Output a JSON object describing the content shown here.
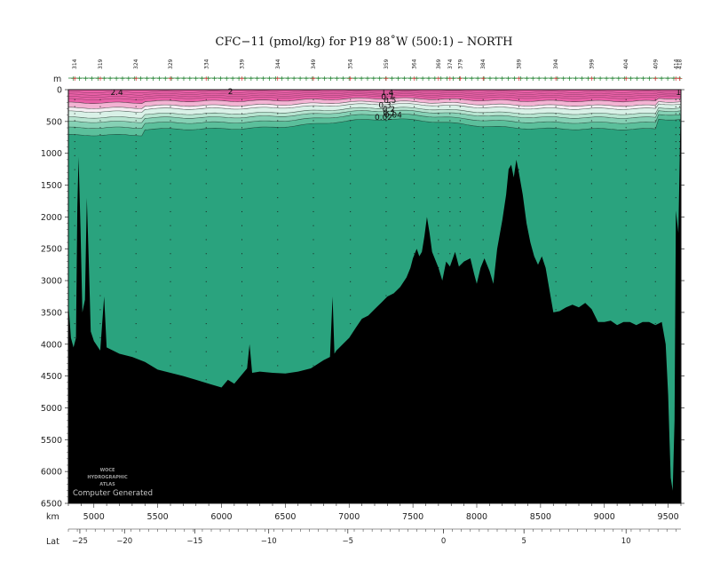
{
  "chart_data": {
    "type": "area",
    "title": "CFC−11 (pmol/kg) for P19 88˚W (500:1) – NORTH",
    "depth_unit_label": "m",
    "km_label": "km",
    "lat_label": "Lat",
    "ylim": [
      0,
      6500
    ],
    "xlim": [
      4800,
      9600
    ],
    "yticks": [
      0,
      500,
      1000,
      1500,
      2000,
      2500,
      3000,
      3500,
      4000,
      4500,
      5000,
      5500,
      6000,
      6500
    ],
    "xticks_km": [
      5000,
      5500,
      6000,
      6500,
      7000,
      7500,
      8000,
      8500,
      9000,
      9500
    ],
    "lat_ticks": [
      {
        "label": "−25",
        "km": 4890
      },
      {
        "label": "−20",
        "km": 5240
      },
      {
        "label": "−15",
        "km": 5790
      },
      {
        "label": "−10",
        "km": 6370
      },
      {
        "label": "−5",
        "km": 6990
      },
      {
        "label": "0",
        "km": 7740
      },
      {
        "label": "5",
        "km": 8370
      },
      {
        "label": "10",
        "km": 9170
      }
    ],
    "station_numbers": [
      {
        "label": "314",
        "km": 4850
      },
      {
        "label": "319",
        "km": 5050
      },
      {
        "label": "324",
        "km": 5330
      },
      {
        "label": "329",
        "km": 5600
      },
      {
        "label": "334",
        "km": 5880
      },
      {
        "label": "339",
        "km": 6160
      },
      {
        "label": "344",
        "km": 6440
      },
      {
        "label": "349",
        "km": 6720
      },
      {
        "label": "354",
        "km": 7010
      },
      {
        "label": "359",
        "km": 7290
      },
      {
        "label": "364",
        "km": 7510
      },
      {
        "label": "369",
        "km": 7700
      },
      {
        "label": "374",
        "km": 7790
      },
      {
        "label": "379",
        "km": 7870
      },
      {
        "label": "384",
        "km": 8050
      },
      {
        "label": "389",
        "km": 8330
      },
      {
        "label": "394",
        "km": 8620
      },
      {
        "label": "399",
        "km": 8900
      },
      {
        "label": "404",
        "km": 9170
      },
      {
        "label": "409",
        "km": 9400
      },
      {
        "label": "414",
        "km": 9560
      },
      {
        "label": "418",
        "km": 9590
      }
    ],
    "contour_labels": [
      {
        "text": "2.4",
        "km": 5130,
        "depth": 40
      },
      {
        "text": "2",
        "km": 6050,
        "depth": 25
      },
      {
        "text": "1.4",
        "km": 7250,
        "depth": 40
      },
      {
        "text": "1",
        "km": 9560,
        "depth": 40
      },
      {
        "text": "0.7",
        "km": 7250,
        "depth": 110
      },
      {
        "text": "0.5",
        "km": 7270,
        "depth": 165
      },
      {
        "text": "0.3",
        "km": 7230,
        "depth": 245
      },
      {
        "text": "0.2",
        "km": 7260,
        "depth": 305
      },
      {
        "text": "0.1",
        "km": 7265,
        "depth": 360
      },
      {
        "text": "0.04",
        "km": 7275,
        "depth": 400
      },
      {
        "text": "0.02",
        "km": 7200,
        "depth": 435
      }
    ],
    "bathymetry_depth_m": [
      [
        4800,
        3350
      ],
      [
        4820,
        3900
      ],
      [
        4840,
        4050
      ],
      [
        4860,
        3900
      ],
      [
        4870,
        1850
      ],
      [
        4880,
        1060
      ],
      [
        4895,
        2200
      ],
      [
        4910,
        3500
      ],
      [
        4930,
        3300
      ],
      [
        4945,
        1700
      ],
      [
        4960,
        2700
      ],
      [
        4975,
        3800
      ],
      [
        5000,
        3950
      ],
      [
        5050,
        4100
      ],
      [
        5080,
        3250
      ],
      [
        5100,
        4050
      ],
      [
        5200,
        4150
      ],
      [
        5300,
        4200
      ],
      [
        5400,
        4280
      ],
      [
        5500,
        4400
      ],
      [
        5600,
        4450
      ],
      [
        5700,
        4500
      ],
      [
        5800,
        4560
      ],
      [
        5900,
        4620
      ],
      [
        6000,
        4680
      ],
      [
        6050,
        4560
      ],
      [
        6100,
        4620
      ],
      [
        6150,
        4500
      ],
      [
        6200,
        4380
      ],
      [
        6220,
        4000
      ],
      [
        6240,
        4450
      ],
      [
        6300,
        4430
      ],
      [
        6400,
        4450
      ],
      [
        6500,
        4460
      ],
      [
        6600,
        4430
      ],
      [
        6700,
        4380
      ],
      [
        6800,
        4250
      ],
      [
        6850,
        4200
      ],
      [
        6870,
        3250
      ],
      [
        6885,
        4150
      ],
      [
        6900,
        4100
      ],
      [
        6950,
        4000
      ],
      [
        7000,
        3900
      ],
      [
        7050,
        3750
      ],
      [
        7100,
        3600
      ],
      [
        7150,
        3550
      ],
      [
        7200,
        3450
      ],
      [
        7250,
        3350
      ],
      [
        7300,
        3250
      ],
      [
        7350,
        3200
      ],
      [
        7400,
        3100
      ],
      [
        7450,
        2950
      ],
      [
        7480,
        2800
      ],
      [
        7500,
        2650
      ],
      [
        7530,
        2500
      ],
      [
        7550,
        2620
      ],
      [
        7570,
        2550
      ],
      [
        7590,
        2300
      ],
      [
        7610,
        2000
      ],
      [
        7630,
        2250
      ],
      [
        7650,
        2550
      ],
      [
        7700,
        2800
      ],
      [
        7730,
        3000
      ],
      [
        7760,
        2700
      ],
      [
        7790,
        2780
      ],
      [
        7830,
        2550
      ],
      [
        7860,
        2780
      ],
      [
        7900,
        2700
      ],
      [
        7950,
        2650
      ],
      [
        7980,
        2900
      ],
      [
        8000,
        3050
      ],
      [
        8030,
        2800
      ],
      [
        8060,
        2650
      ],
      [
        8100,
        2850
      ],
      [
        8130,
        3050
      ],
      [
        8160,
        2500
      ],
      [
        8200,
        2050
      ],
      [
        8230,
        1650
      ],
      [
        8250,
        1250
      ],
      [
        8270,
        1180
      ],
      [
        8290,
        1380
      ],
      [
        8310,
        1100
      ],
      [
        8330,
        1300
      ],
      [
        8360,
        1650
      ],
      [
        8390,
        2100
      ],
      [
        8420,
        2400
      ],
      [
        8450,
        2620
      ],
      [
        8480,
        2750
      ],
      [
        8510,
        2620
      ],
      [
        8540,
        2800
      ],
      [
        8570,
        3150
      ],
      [
        8600,
        3500
      ],
      [
        8650,
        3480
      ],
      [
        8700,
        3420
      ],
      [
        8750,
        3380
      ],
      [
        8800,
        3420
      ],
      [
        8850,
        3350
      ],
      [
        8900,
        3450
      ],
      [
        8950,
        3650
      ],
      [
        9000,
        3650
      ],
      [
        9050,
        3630
      ],
      [
        9100,
        3700
      ],
      [
        9150,
        3650
      ],
      [
        9200,
        3650
      ],
      [
        9250,
        3700
      ],
      [
        9300,
        3650
      ],
      [
        9350,
        3650
      ],
      [
        9400,
        3700
      ],
      [
        9450,
        3650
      ],
      [
        9480,
        4000
      ],
      [
        9500,
        4800
      ],
      [
        9510,
        5500
      ],
      [
        9520,
        6100
      ],
      [
        9535,
        6300
      ],
      [
        9550,
        5200
      ],
      [
        9560,
        1900
      ],
      [
        9580,
        2250
      ],
      [
        9600,
        0
      ]
    ],
    "color_bands": [
      {
        "level": "> 2",
        "color": "#e85fa6"
      },
      {
        "level": "1.4",
        "color": "#f3b3d3"
      },
      {
        "level": "1.0",
        "color": "#f4eef2"
      },
      {
        "level": "0.7",
        "color": "#d9f1e7"
      },
      {
        "level": "0.5",
        "color": "#b6e4d0"
      },
      {
        "level": "0.3",
        "color": "#86d1b5"
      },
      {
        "level": "0.1",
        "color": "#5bbf9b"
      },
      {
        "level": "< 0.1",
        "color": "#2aa37e"
      }
    ],
    "colors": {
      "water": "#2aa37e",
      "bottom": "#000000",
      "station": "#1a7d2a",
      "tick_red": "#d03333"
    }
  },
  "watermark": {
    "line1": "WOCE",
    "line2": "HYDROGRAPHIC",
    "line3": "ATLAS",
    "line4": "Computer Generated"
  }
}
